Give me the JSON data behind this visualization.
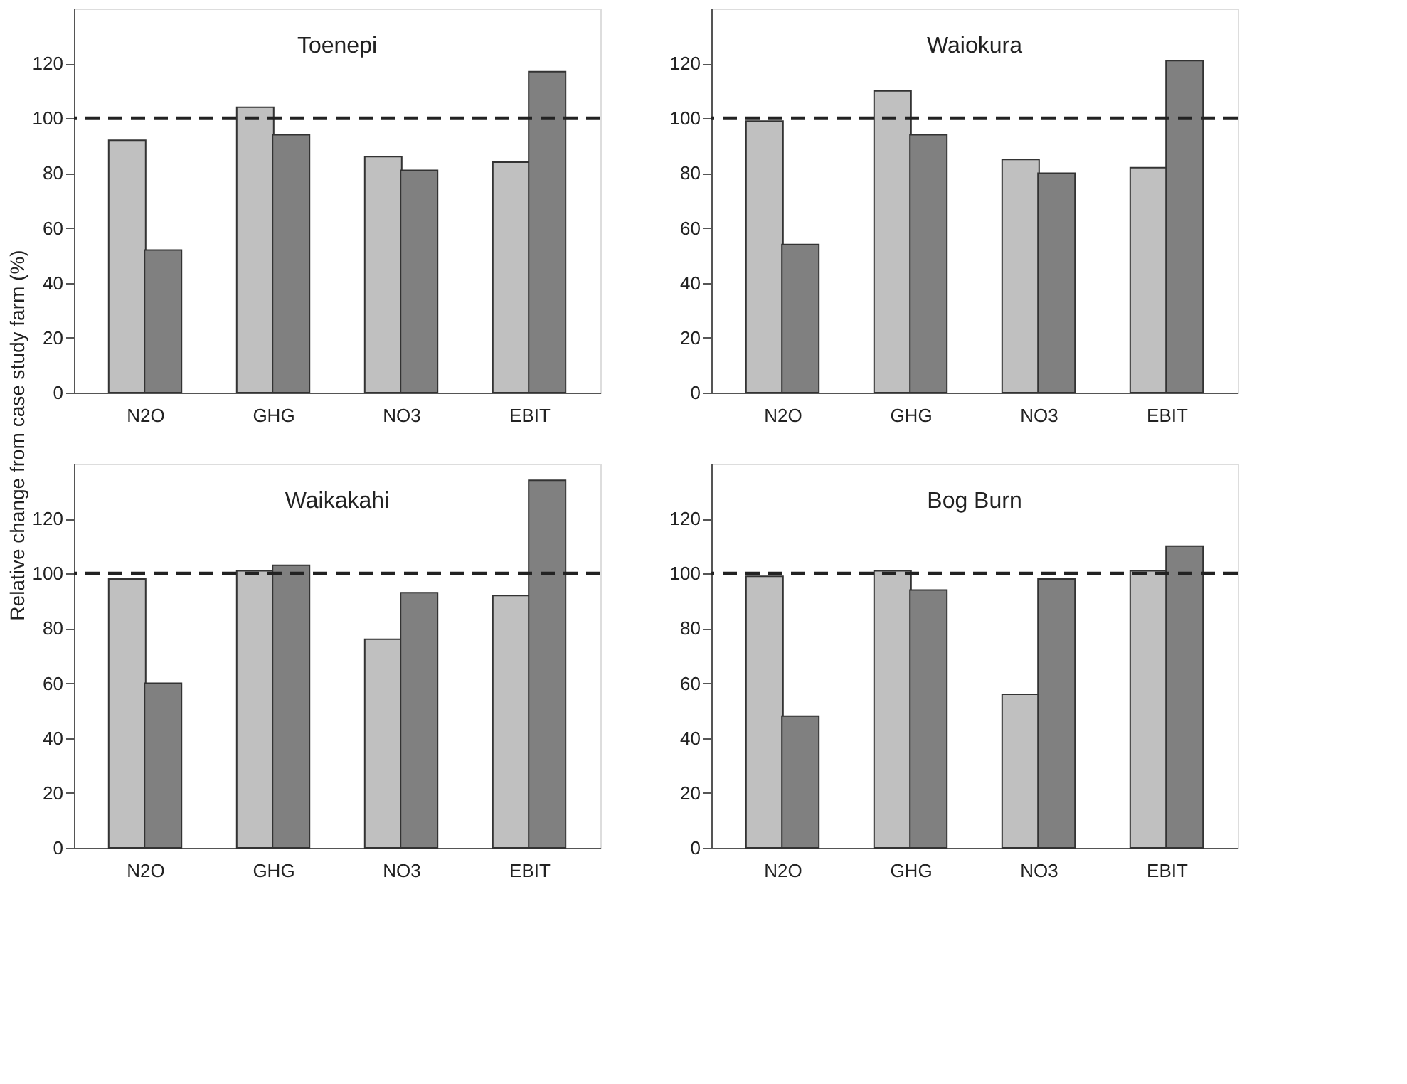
{
  "chart_data": [
    {
      "type": "bar",
      "title": "Toenepi",
      "ylabel": "Relative change from case study farm (%)",
      "categories": [
        "N2O",
        "GHG",
        "NO3",
        "EBIT"
      ],
      "series": [
        {
          "color": "#c0c0c0",
          "values": [
            92,
            104,
            86,
            84
          ]
        },
        {
          "color": "#808080",
          "values": [
            52,
            94,
            81,
            117
          ]
        }
      ],
      "ylim": [
        0,
        140
      ],
      "yticks": [
        0,
        20,
        40,
        60,
        80,
        100,
        120
      ],
      "grid": false,
      "legend": false,
      "ref_lines": [
        {
          "axis": "y",
          "value": 100,
          "line_style": "dashed"
        }
      ]
    },
    {
      "type": "bar",
      "title": "Waiokura",
      "categories": [
        "N2O",
        "GHG",
        "NO3",
        "EBIT"
      ],
      "series": [
        {
          "color": "#c0c0c0",
          "values": [
            99,
            110,
            85,
            82
          ]
        },
        {
          "color": "#808080",
          "values": [
            54,
            94,
            80,
            121
          ]
        }
      ],
      "ylim": [
        0,
        140
      ],
      "yticks": [
        0,
        20,
        40,
        60,
        80,
        100,
        120
      ],
      "grid": false,
      "legend": false,
      "ref_lines": [
        {
          "axis": "y",
          "value": 100,
          "line_style": "dashed"
        }
      ]
    },
    {
      "type": "bar",
      "title": "Waikakahi",
      "categories": [
        "N2O",
        "GHG",
        "NO3",
        "EBIT"
      ],
      "series": [
        {
          "color": "#c0c0c0",
          "values": [
            98,
            101,
            76,
            92
          ]
        },
        {
          "color": "#808080",
          "values": [
            60,
            103,
            93,
            134
          ]
        }
      ],
      "ylim": [
        0,
        140
      ],
      "yticks": [
        0,
        20,
        40,
        60,
        80,
        100,
        120
      ],
      "grid": false,
      "legend": false,
      "ref_lines": [
        {
          "axis": "y",
          "value": 100,
          "line_style": "dashed"
        }
      ]
    },
    {
      "type": "bar",
      "title": "Bog Burn",
      "categories": [
        "N2O",
        "GHG",
        "NO3",
        "EBIT"
      ],
      "series": [
        {
          "color": "#c0c0c0",
          "values": [
            99,
            101,
            56,
            101
          ]
        },
        {
          "color": "#808080",
          "values": [
            48,
            94,
            98,
            110
          ]
        }
      ],
      "ylim": [
        0,
        140
      ],
      "yticks": [
        0,
        20,
        40,
        60,
        80,
        100,
        120
      ],
      "grid": false,
      "legend": false,
      "ref_lines": [
        {
          "axis": "y",
          "value": 100,
          "line_style": "dashed"
        }
      ]
    }
  ]
}
